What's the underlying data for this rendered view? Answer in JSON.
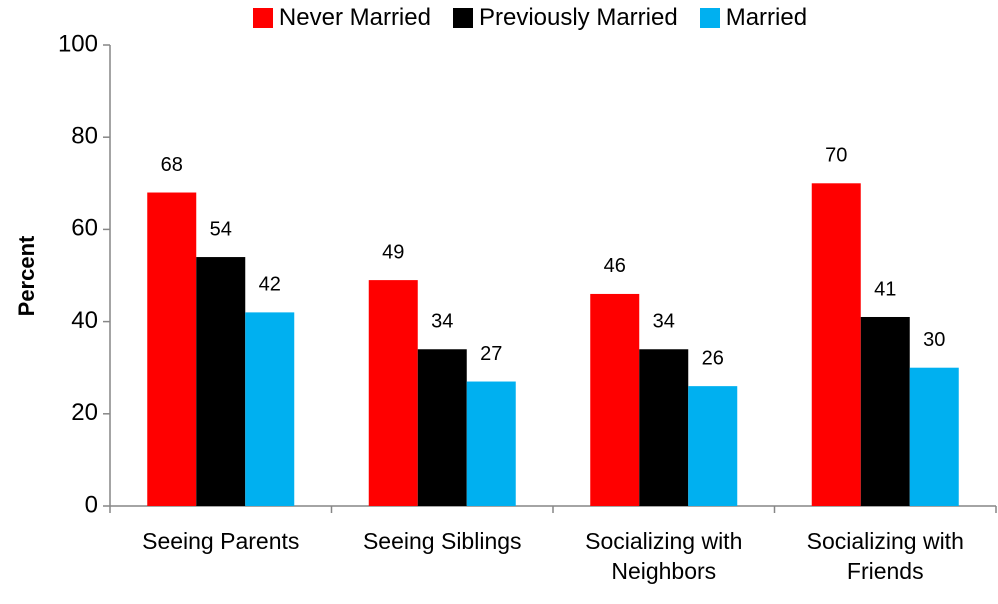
{
  "chart_data": {
    "type": "bar",
    "categories": [
      "Seeing Parents",
      "Seeing Siblings",
      "Socializing with Neighbors",
      "Socializing with Friends"
    ],
    "series": [
      {
        "name": "Never Married",
        "color": "#ff0000",
        "values": [
          68,
          49,
          46,
          70
        ]
      },
      {
        "name": "Previously Married",
        "color": "#000000",
        "values": [
          54,
          34,
          34,
          41
        ]
      },
      {
        "name": "Married",
        "color": "#00b0f0",
        "values": [
          42,
          27,
          26,
          30
        ]
      }
    ],
    "y_label": "Percent",
    "ylim": [
      0,
      100
    ],
    "yticks": [
      0,
      20,
      40,
      60,
      80,
      100
    ],
    "legend": "top",
    "grid": false
  }
}
